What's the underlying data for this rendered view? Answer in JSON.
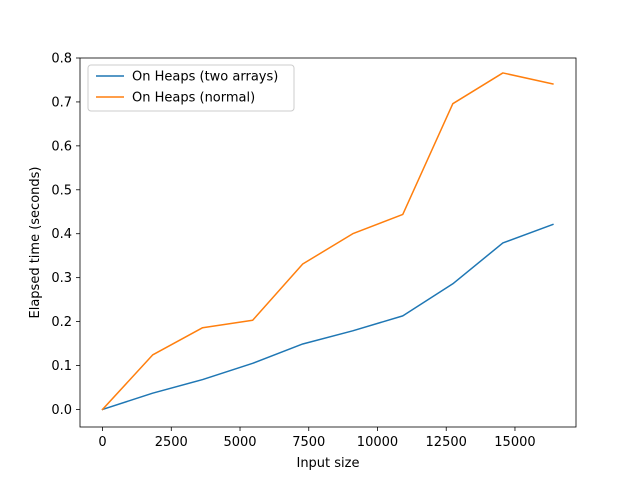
{
  "chart_data": {
    "type": "line",
    "title": "",
    "xlabel": "Input size",
    "ylabel": "Elapsed time (seconds)",
    "xlim": [
      -820,
      17220
    ],
    "ylim": [
      -0.04,
      0.8
    ],
    "xticks": [
      0,
      2500,
      5000,
      7500,
      10000,
      12500,
      15000
    ],
    "xtick_labels": [
      "0",
      "2500",
      "5000",
      "7500",
      "10000",
      "12500",
      "15000"
    ],
    "yticks": [
      0.0,
      0.1,
      0.2,
      0.3,
      0.4,
      0.5,
      0.6,
      0.7,
      0.8
    ],
    "ytick_labels": [
      "0.0",
      "0.1",
      "0.2",
      "0.3",
      "0.4",
      "0.5",
      "0.6",
      "0.7",
      "0.8"
    ],
    "grid": false,
    "legend_position": "top-left",
    "x": [
      0,
      1820,
      3640,
      5460,
      7280,
      9100,
      10920,
      12740,
      14560,
      16380
    ],
    "series": [
      {
        "name": "On Heaps (two arrays)",
        "color": "#1f77b4",
        "values": [
          0.0,
          0.037,
          0.068,
          0.105,
          0.149,
          0.179,
          0.213,
          0.286,
          0.379,
          0.421
        ]
      },
      {
        "name": "On Heaps (normal)",
        "color": "#ff7f0e",
        "values": [
          0.0,
          0.124,
          0.186,
          0.203,
          0.331,
          0.4,
          0.444,
          0.696,
          0.766,
          0.741
        ]
      }
    ]
  }
}
